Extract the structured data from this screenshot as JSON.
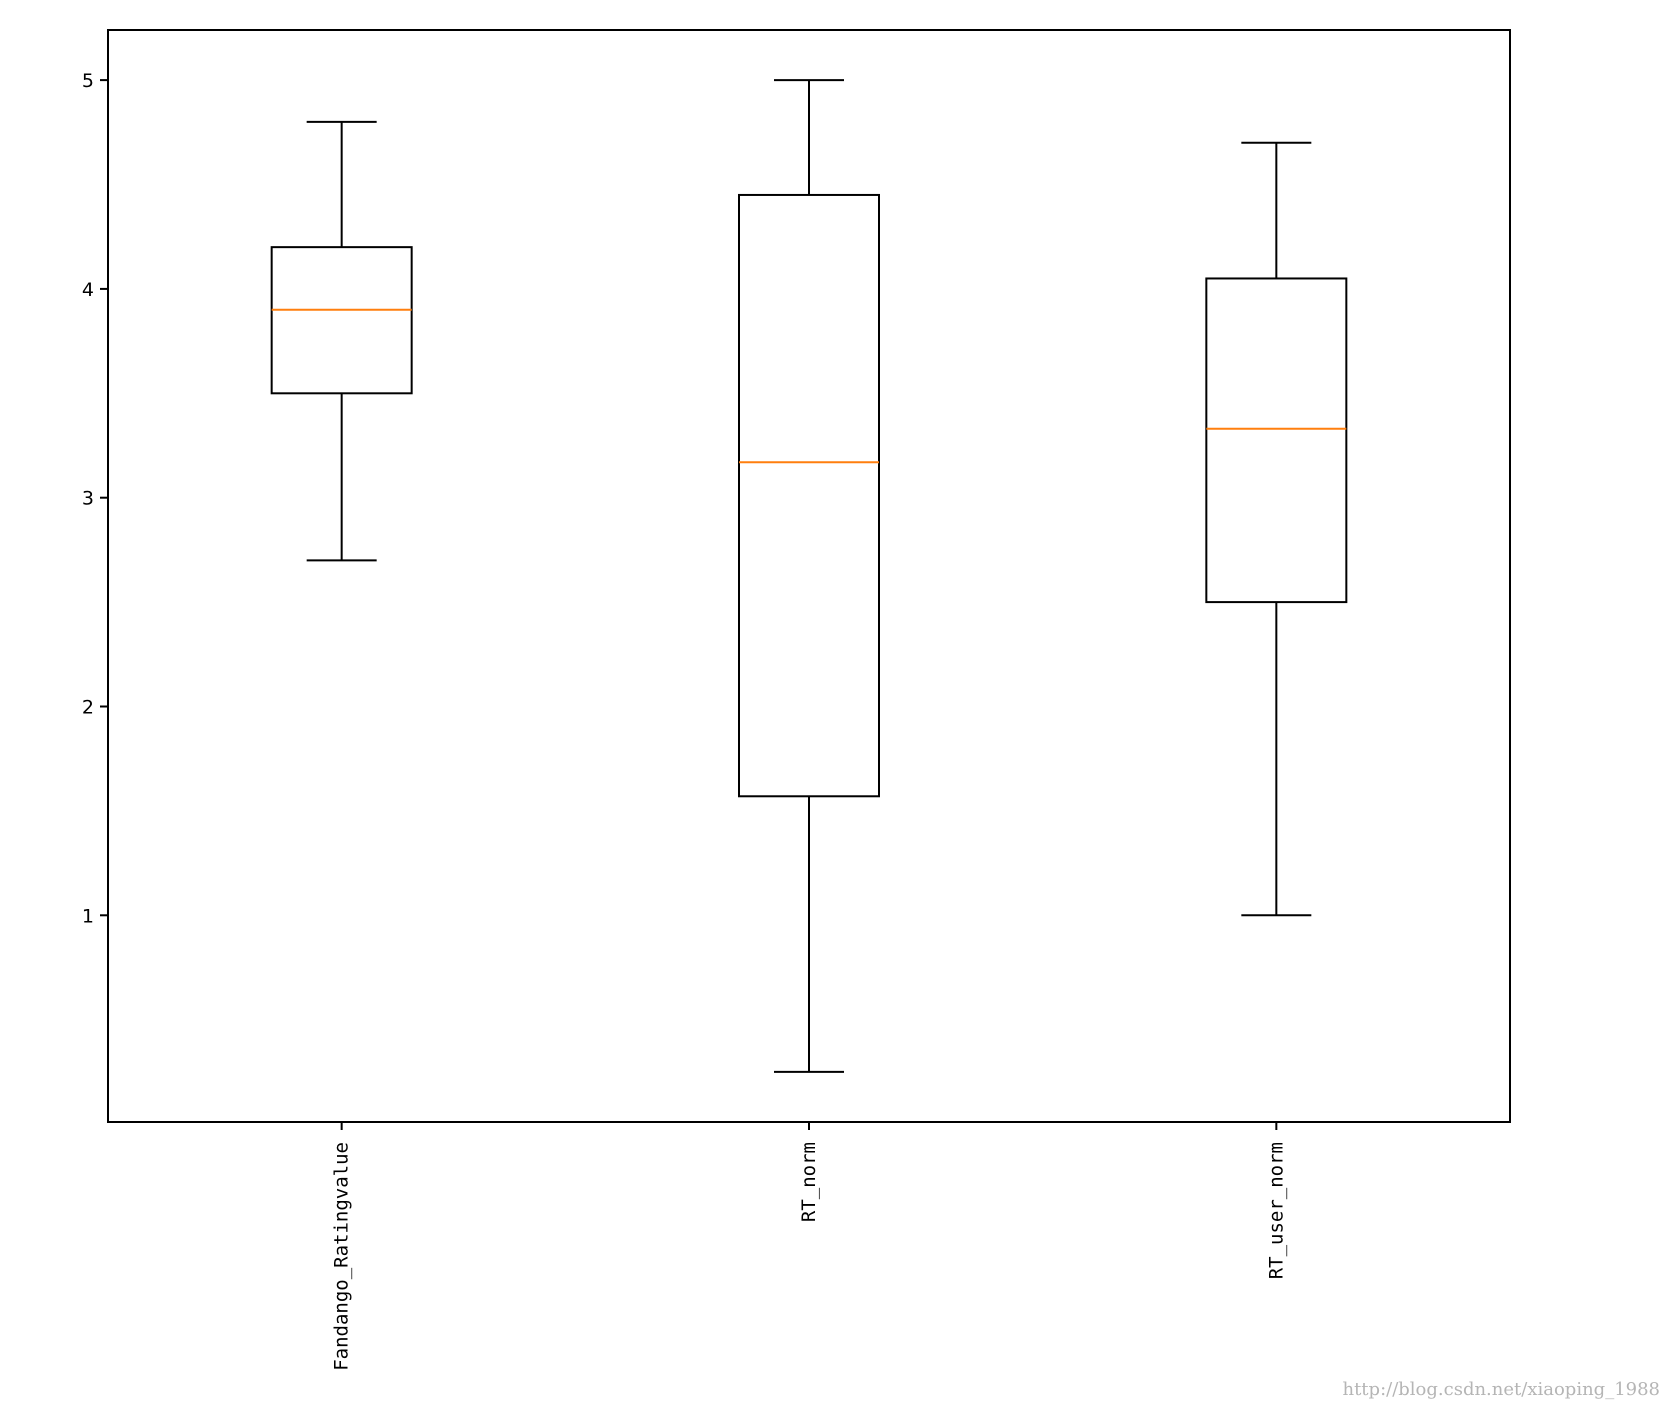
{
  "chart_data": {
    "type": "boxplot",
    "title": "",
    "xlabel": "",
    "ylabel": "",
    "categories": [
      "Fandango_Ratingvalue",
      "RT_norm",
      "RT_user_norm"
    ],
    "boxes": [
      {
        "name": "Fandango_Ratingvalue",
        "whisker_low": 2.7,
        "q1": 3.5,
        "median": 3.9,
        "q3": 4.2,
        "whisker_high": 4.8
      },
      {
        "name": "RT_norm",
        "whisker_low": 0.25,
        "q1": 1.57,
        "median": 3.17,
        "q3": 4.45,
        "whisker_high": 5.0
      },
      {
        "name": "RT_user_norm",
        "whisker_low": 1.0,
        "q1": 2.5,
        "median": 3.33,
        "q3": 4.05,
        "whisker_high": 4.7
      }
    ],
    "yticks": [
      "1",
      "2",
      "3",
      "4",
      "5"
    ],
    "ylim": [
      0.01,
      5.24
    ],
    "grid": false,
    "legend": "none",
    "colors": {
      "box": "#000000",
      "median": "#ff7f0e"
    }
  },
  "watermark": "http://blog.csdn.net/xiaoping_1988"
}
